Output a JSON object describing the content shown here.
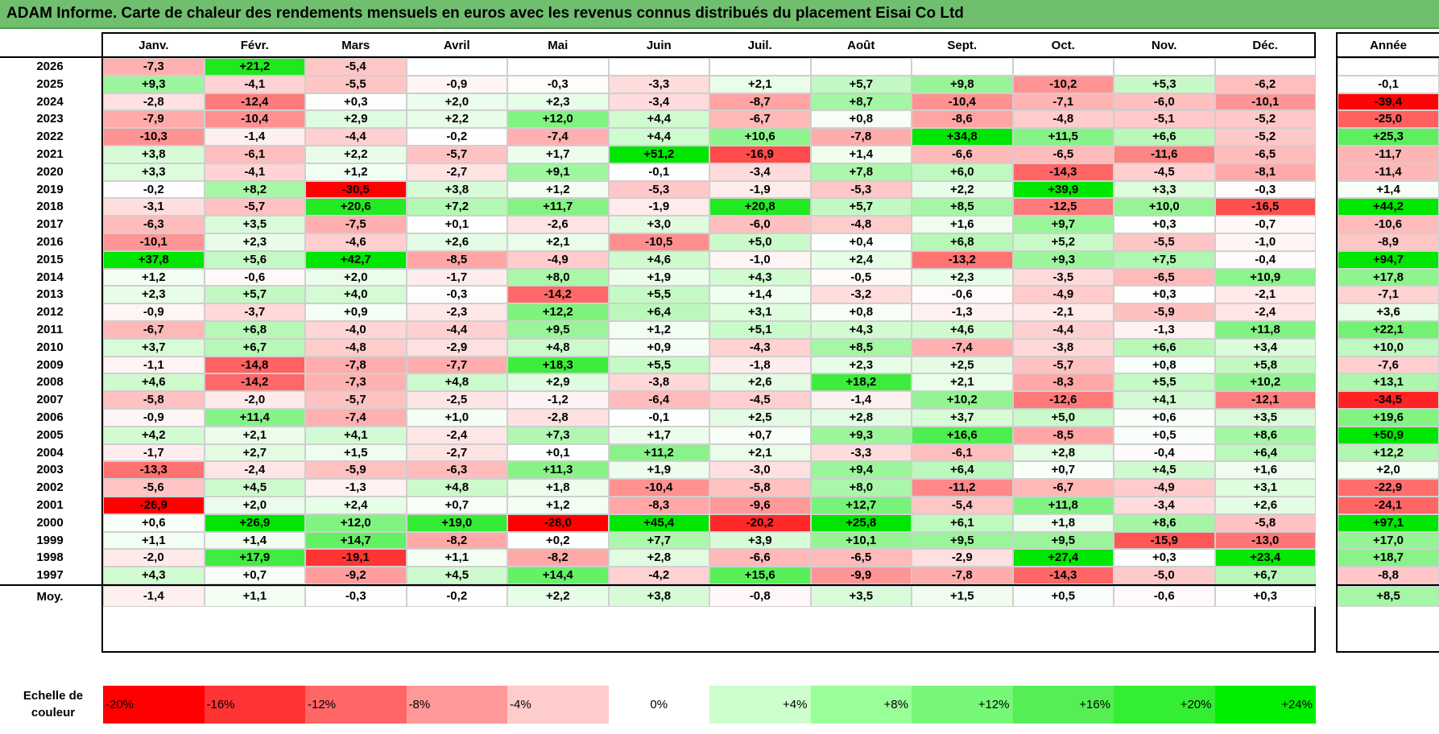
{
  "title": "ADAM Informe. Carte de chaleur des rendements mensuels en euros avec les revenus connus distribués du placement Eisai Co Ltd",
  "chart_data": {
    "type": "heatmap",
    "title": "ADAM Informe. Carte de chaleur des rendements mensuels en euros avec les revenus connus distribués du placement Eisai Co Ltd",
    "columns": [
      "Janv.",
      "Févr.",
      "Mars",
      "Avril",
      "Mai",
      "Juin",
      "Juil.",
      "Août",
      "Sept.",
      "Oct.",
      "Nov.",
      "Déc."
    ],
    "year_column_label": "Année",
    "rows": [
      {
        "year": "2026",
        "months": [
          "-7,3",
          "+21,2",
          "-5,4",
          "",
          "",
          "",
          "",
          "",
          "",
          "",
          "",
          ""
        ],
        "annual": ""
      },
      {
        "year": "2025",
        "months": [
          "+9,3",
          "-4,1",
          "-5,5",
          "-0,9",
          "-0,3",
          "-3,3",
          "+2,1",
          "+5,7",
          "+9,8",
          "-10,2",
          "+5,3",
          "-6,2"
        ],
        "annual": "-0,1"
      },
      {
        "year": "2024",
        "months": [
          "-2,8",
          "-12,4",
          "+0,3",
          "+2,0",
          "+2,3",
          "-3,4",
          "-8,7",
          "+8,7",
          "-10,4",
          "-7,1",
          "-6,0",
          "-10,1"
        ],
        "annual": "-39,4"
      },
      {
        "year": "2023",
        "months": [
          "-7,9",
          "-10,4",
          "+2,9",
          "+2,2",
          "+12,0",
          "+4,4",
          "-6,7",
          "+0,8",
          "-8,6",
          "-4,8",
          "-5,1",
          "-5,2"
        ],
        "annual": "-25,0"
      },
      {
        "year": "2022",
        "months": [
          "-10,3",
          "-1,4",
          "-4,4",
          "-0,2",
          "-7,4",
          "+4,4",
          "+10,6",
          "-7,8",
          "+34,8",
          "+11,5",
          "+6,6",
          "-5,2"
        ],
        "annual": "+25,3"
      },
      {
        "year": "2021",
        "months": [
          "+3,8",
          "-6,1",
          "+2,2",
          "-5,7",
          "+1,7",
          "+51,2",
          "-16,9",
          "+1,4",
          "-6,6",
          "-6,5",
          "-11,6",
          "-6,5"
        ],
        "annual": "-11,7"
      },
      {
        "year": "2020",
        "months": [
          "+3,3",
          "-4,1",
          "+1,2",
          "-2,7",
          "+9,1",
          "-0,1",
          "-3,4",
          "+7,8",
          "+6,0",
          "-14,3",
          "-4,5",
          "-8,1"
        ],
        "annual": "-11,4"
      },
      {
        "year": "2019",
        "months": [
          "-0,2",
          "+8,2",
          "-30,5",
          "+3,8",
          "+1,2",
          "-5,3",
          "-1,9",
          "-5,3",
          "+2,2",
          "+39,9",
          "+3,3",
          "-0,3"
        ],
        "annual": "+1,4"
      },
      {
        "year": "2018",
        "months": [
          "-3,1",
          "-5,7",
          "+20,6",
          "+7,2",
          "+11,7",
          "-1,9",
          "+20,8",
          "+5,7",
          "+8,5",
          "-12,5",
          "+10,0",
          "-16,5"
        ],
        "annual": "+44,2"
      },
      {
        "year": "2017",
        "months": [
          "-6,3",
          "+3,5",
          "-7,5",
          "+0,1",
          "-2,6",
          "+3,0",
          "-6,0",
          "-4,8",
          "+1,6",
          "+9,7",
          "+0,3",
          "-0,7"
        ],
        "annual": "-10,6"
      },
      {
        "year": "2016",
        "months": [
          "-10,1",
          "+2,3",
          "-4,6",
          "+2,6",
          "+2,1",
          "-10,5",
          "+5,0",
          "+0,4",
          "+6,8",
          "+5,2",
          "-5,5",
          "-1,0"
        ],
        "annual": "-8,9"
      },
      {
        "year": "2015",
        "months": [
          "+37,8",
          "+5,6",
          "+42,7",
          "-8,5",
          "-4,9",
          "+4,6",
          "-1,0",
          "+2,4",
          "-13,2",
          "+9,3",
          "+7,5",
          "-0,4"
        ],
        "annual": "+94,7"
      },
      {
        "year": "2014",
        "months": [
          "+1,2",
          "-0,6",
          "+2,0",
          "-1,7",
          "+8,0",
          "+1,9",
          "+4,3",
          "-0,5",
          "+2,3",
          "-3,5",
          "-6,5",
          "+10,9"
        ],
        "annual": "+17,8"
      },
      {
        "year": "2013",
        "months": [
          "+2,3",
          "+5,7",
          "+4,0",
          "-0,3",
          "-14,2",
          "+5,5",
          "+1,4",
          "-3,2",
          "-0,6",
          "-4,9",
          "+0,3",
          "-2,1"
        ],
        "annual": "-7,1"
      },
      {
        "year": "2012",
        "months": [
          "-0,9",
          "-3,7",
          "+0,9",
          "-2,3",
          "+12,2",
          "+6,4",
          "+3,1",
          "+0,8",
          "-1,3",
          "-2,1",
          "-5,9",
          "-2,4"
        ],
        "annual": "+3,6"
      },
      {
        "year": "2011",
        "months": [
          "-6,7",
          "+6,8",
          "-4,0",
          "-4,4",
          "+9,5",
          "+1,2",
          "+5,1",
          "+4,3",
          "+4,6",
          "-4,4",
          "-1,3",
          "+11,8"
        ],
        "annual": "+22,1"
      },
      {
        "year": "2010",
        "months": [
          "+3,7",
          "+6,7",
          "-4,8",
          "-2,9",
          "+4,8",
          "+0,9",
          "-4,3",
          "+8,5",
          "-7,4",
          "-3,8",
          "+6,6",
          "+3,4"
        ],
        "annual": "+10,0"
      },
      {
        "year": "2009",
        "months": [
          "-1,1",
          "-14,8",
          "-7,8",
          "-7,7",
          "+18,3",
          "+5,5",
          "-1,8",
          "+2,3",
          "+2,5",
          "-5,7",
          "+0,8",
          "+5,8"
        ],
        "annual": "-7,6"
      },
      {
        "year": "2008",
        "months": [
          "+4,6",
          "-14,2",
          "-7,3",
          "+4,8",
          "+2,9",
          "-3,8",
          "+2,6",
          "+18,2",
          "+2,1",
          "-8,3",
          "+5,5",
          "+10,2"
        ],
        "annual": "+13,1"
      },
      {
        "year": "2007",
        "months": [
          "-5,8",
          "-2,0",
          "-5,7",
          "-2,5",
          "-1,2",
          "-6,4",
          "-4,5",
          "-1,4",
          "+10,2",
          "-12,6",
          "+4,1",
          "-12,1"
        ],
        "annual": "-34,5"
      },
      {
        "year": "2006",
        "months": [
          "-0,9",
          "+11,4",
          "-7,4",
          "+1,0",
          "-2,8",
          "-0,1",
          "+2,5",
          "+2,8",
          "+3,7",
          "+5,0",
          "+0,6",
          "+3,5"
        ],
        "annual": "+19,6"
      },
      {
        "year": "2005",
        "months": [
          "+4,2",
          "+2,1",
          "+4,1",
          "-2,4",
          "+7,3",
          "+1,7",
          "+0,7",
          "+9,3",
          "+16,6",
          "-8,5",
          "+0,5",
          "+8,6"
        ],
        "annual": "+50,9"
      },
      {
        "year": "2004",
        "months": [
          "-1,7",
          "+2,7",
          "+1,5",
          "-2,7",
          "+0,1",
          "+11,2",
          "+2,1",
          "-3,3",
          "-6,1",
          "+2,8",
          "-0,4",
          "+6,4"
        ],
        "annual": "+12,2"
      },
      {
        "year": "2003",
        "months": [
          "-13,3",
          "-2,4",
          "-5,9",
          "-6,3",
          "+11,3",
          "+1,9",
          "-3,0",
          "+9,4",
          "+6,4",
          "+0,7",
          "+4,5",
          "+1,6"
        ],
        "annual": "+2,0"
      },
      {
        "year": "2002",
        "months": [
          "-5,6",
          "+4,5",
          "-1,3",
          "+4,8",
          "+1,8",
          "-10,4",
          "-5,8",
          "+8,0",
          "-11,2",
          "-6,7",
          "-4,9",
          "+3,1"
        ],
        "annual": "-22,9"
      },
      {
        "year": "2001",
        "months": [
          "-26,9",
          "+2,0",
          "+2,4",
          "+0,7",
          "+1,2",
          "-8,3",
          "-9,6",
          "+12,7",
          "-5,4",
          "+11,8",
          "-3,4",
          "+2,6"
        ],
        "annual": "-24,1"
      },
      {
        "year": "2000",
        "months": [
          "+0,6",
          "+26,9",
          "+12,0",
          "+19,0",
          "-28,0",
          "+45,4",
          "-20,2",
          "+25,8",
          "+6,1",
          "+1,8",
          "+8,6",
          "-5,8"
        ],
        "annual": "+97,1"
      },
      {
        "year": "1999",
        "months": [
          "+1,1",
          "+1,4",
          "+14,7",
          "-8,2",
          "+0,2",
          "+7,7",
          "+3,9",
          "+10,1",
          "+9,5",
          "+9,5",
          "-15,9",
          "-13,0"
        ],
        "annual": "+17,0"
      },
      {
        "year": "1998",
        "months": [
          "-2,0",
          "+17,9",
          "-19,1",
          "+1,1",
          "-8,2",
          "+2,8",
          "-6,6",
          "-6,5",
          "-2,9",
          "+27,4",
          "+0,3",
          "+23,4"
        ],
        "annual": "+18,7"
      },
      {
        "year": "1997",
        "months": [
          "+4,3",
          "+0,7",
          "-9,2",
          "+4,5",
          "+14,4",
          "-4,2",
          "+15,6",
          "-9,9",
          "-7,8",
          "-14,3",
          "-5,0",
          "+6,7"
        ],
        "annual": "-8,8"
      }
    ],
    "average_row": {
      "label": "Moy.",
      "months": [
        "-1,4",
        "+1,1",
        "-0,3",
        "-0,2",
        "+2,2",
        "+3,8",
        "-0,8",
        "+3,5",
        "+1,5",
        "+0,5",
        "-0,6",
        "+0,3"
      ],
      "annual": "+8,5"
    },
    "legend": {
      "label_line1": "Echelle de",
      "label_line2": "couleur",
      "steps": [
        {
          "label": "-20%",
          "color": "#ff0000"
        },
        {
          "label": "-16%",
          "color": "#ff3333"
        },
        {
          "label": "-12%",
          "color": "#ff6666"
        },
        {
          "label": "-8%",
          "color": "#ff9999"
        },
        {
          "label": "-4%",
          "color": "#ffcccc"
        },
        {
          "label": "0%",
          "color": "#ffffff"
        },
        {
          "label": "+4%",
          "color": "#ccffcc"
        },
        {
          "label": "+8%",
          "color": "#99ff99"
        },
        {
          "label": "+12%",
          "color": "#77f777"
        },
        {
          "label": "+16%",
          "color": "#55ee55"
        },
        {
          "label": "+20%",
          "color": "#33ee33"
        },
        {
          "label": "+24%",
          "color": "#00ee00"
        }
      ]
    }
  },
  "colors": {
    "title_bar": "#6fbf6f",
    "negative_max": "#ff0000",
    "positive_max": "#00e600",
    "neutral": "#ffffff"
  }
}
